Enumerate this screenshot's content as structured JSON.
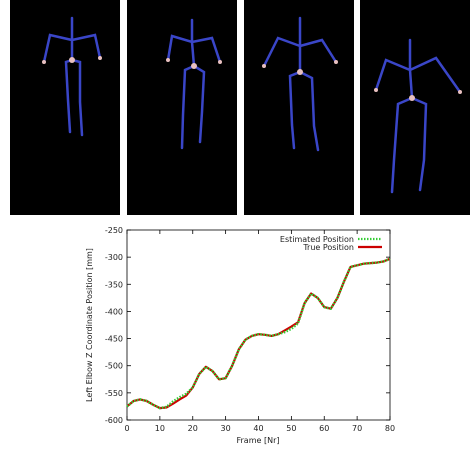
{
  "chart_data": {
    "type": "line",
    "x_label": "Frame [Nr]",
    "y_label": "Left Elbow Z Coordinate Position [mm]",
    "x": [
      0,
      2,
      4,
      6,
      8,
      10,
      12,
      14,
      16,
      18,
      20,
      22,
      24,
      26,
      28,
      30,
      32,
      34,
      36,
      38,
      40,
      42,
      44,
      46,
      48,
      50,
      52,
      54,
      56,
      58,
      60,
      62,
      64,
      66,
      68,
      70,
      72,
      74,
      76,
      78,
      80
    ],
    "series": [
      {
        "name": "Estimated Position",
        "color": "#33cc33",
        "values": [
          -575,
          -565,
          -562,
          -565,
          -572,
          -578,
          -576,
          -566,
          -558,
          -552,
          -540,
          -515,
          -502,
          -510,
          -525,
          -523,
          -500,
          -470,
          -452,
          -445,
          -442,
          -443,
          -445,
          -442,
          -438,
          -432,
          -422,
          -385,
          -367,
          -375,
          -392,
          -395,
          -375,
          -345,
          -318,
          -315,
          -312,
          -311,
          -310,
          -308,
          -303
        ]
      },
      {
        "name": "True Position",
        "color": "#cc0000",
        "values": [
          -575,
          -565,
          -562,
          -565,
          -572,
          -578,
          -577,
          -570,
          -562,
          -555,
          -540,
          -515,
          -502,
          -510,
          -525,
          -523,
          -500,
          -470,
          -452,
          -445,
          -442,
          -443,
          -445,
          -442,
          -435,
          -428,
          -420,
          -385,
          -367,
          -375,
          -392,
          -395,
          -375,
          -345,
          -318,
          -315,
          -312,
          -311,
          -310,
          -308,
          -303
        ]
      }
    ],
    "xlim": [
      0,
      80
    ],
    "xticks": [
      0,
      10,
      20,
      30,
      40,
      50,
      60,
      70,
      80
    ],
    "ylim": [
      -600,
      -250
    ],
    "yticks": [
      -600,
      -550,
      -500,
      -450,
      -400,
      -350,
      -300,
      -250
    ],
    "legend": "top-right"
  }
}
